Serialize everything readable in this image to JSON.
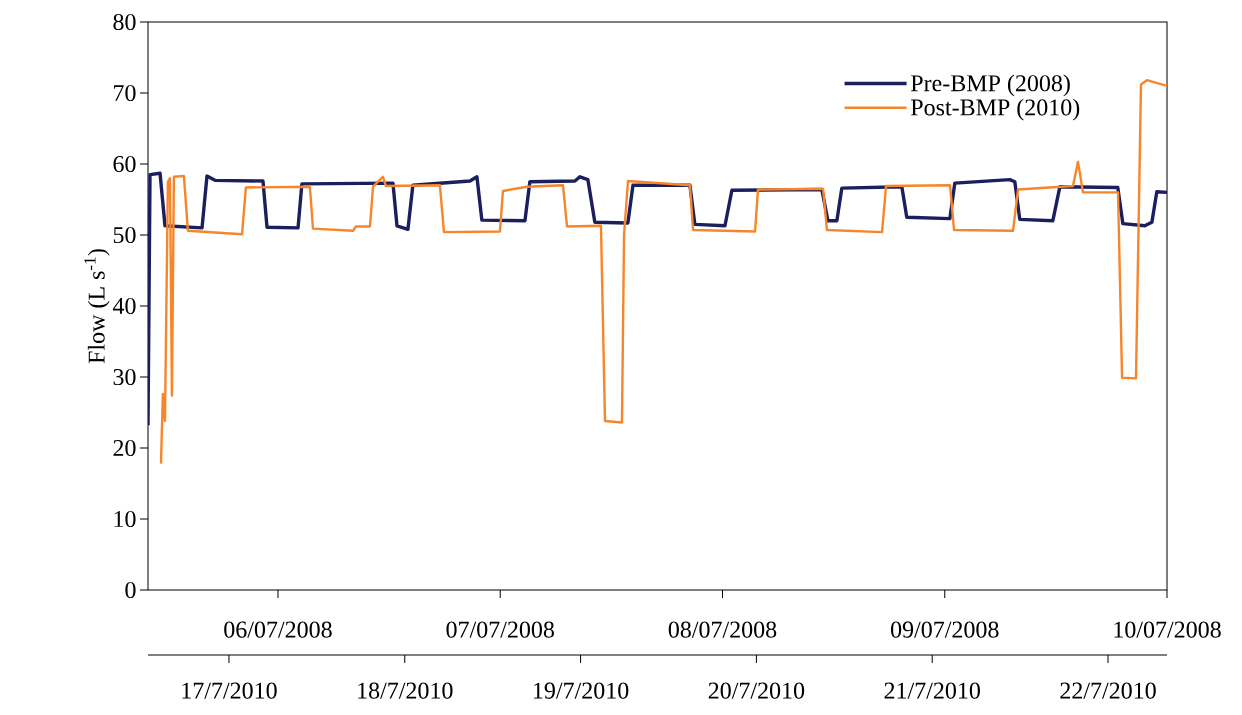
{
  "chart_data": {
    "type": "line",
    "ylabel": "Flow (L s$^{-1}$)",
    "ylim": [
      0,
      80
    ],
    "yticks": [
      0,
      10,
      20,
      30,
      40,
      50,
      60,
      70,
      80
    ],
    "xlim": [
      "2008-07-05T09:58",
      "2008-07-10T00:00"
    ],
    "xticks": [
      {
        "value": "2008-07-06",
        "label": "06/07/2008"
      },
      {
        "value": "2008-07-07",
        "label": "07/07/2008"
      },
      {
        "value": "2008-07-08",
        "label": "08/07/2008"
      },
      {
        "value": "2008-07-09",
        "label": "09/07/2008"
      },
      {
        "value": "2008-07-10",
        "label": "10/07/2008"
      }
    ],
    "x2lim": [
      "2010-07-16T12:57",
      "2010-07-22T08:03"
    ],
    "x2ticks": [
      {
        "value": "2010-07-17",
        "label": "17/7/2010"
      },
      {
        "value": "2010-07-18",
        "label": "18/7/2010"
      },
      {
        "value": "2010-07-19",
        "label": "19/7/2010"
      },
      {
        "value": "2010-07-20",
        "label": "20/7/2010"
      },
      {
        "value": "2010-07-21",
        "label": "21/7/2010"
      },
      {
        "value": "2010-07-22",
        "label": "22/7/2010"
      }
    ],
    "legend": "top right",
    "series": [
      {
        "name": "Pre-BMP (2008)",
        "color": "#1b1f5e",
        "x": [
          "2008-07-05T09:58",
          "2008-07-05T10:11",
          "2008-07-05T11:16",
          "2008-07-05T11:48",
          "2008-07-05T15:48",
          "2008-07-05T16:20",
          "2008-07-05T17:12",
          "2008-07-05T22:23",
          "2008-07-05T22:49",
          "2008-07-06T02:10",
          "2008-07-06T02:35",
          "2008-07-06T12:25",
          "2008-07-06T12:51",
          "2008-07-06T14:02",
          "2008-07-06T14:34",
          "2008-07-06T20:44",
          "2008-07-06T21:29",
          "2008-07-06T22:01",
          "2008-07-07T02:40",
          "2008-07-07T03:12",
          "2008-07-07T08:04",
          "2008-07-07T08:36",
          "2008-07-07T09:28",
          "2008-07-07T10:13",
          "2008-07-07T13:47",
          "2008-07-07T14:20",
          "2008-07-07T20:29",
          "2008-07-07T21:01",
          "2008-07-08T00:16",
          "2008-07-08T01:01",
          "2008-07-08T10:44",
          "2008-07-08T11:23",
          "2008-07-08T12:21",
          "2008-07-08T12:53",
          "2008-07-08T19:22",
          "2008-07-08T19:54",
          "2008-07-09T00:33",
          "2008-07-09T01:05",
          "2008-07-09T07:02",
          "2008-07-09T07:34",
          "2008-07-09T08:06",
          "2008-07-09T11:40",
          "2008-07-09T12:26",
          "2008-07-09T18:41",
          "2008-07-09T19:14",
          "2008-07-09T21:36",
          "2008-07-09T22:22",
          "2008-07-09T22:54",
          "2008-07-10T00:00"
        ],
        "values": [
          23.2,
          58.5,
          58.7,
          51.3,
          51.0,
          58.3,
          57.7,
          57.6,
          51.1,
          51.0,
          57.2,
          57.3,
          51.3,
          50.8,
          57.0,
          57.6,
          58.2,
          52.1,
          52.0,
          57.5,
          57.6,
          58.2,
          57.8,
          51.8,
          51.7,
          57.0,
          57.0,
          51.5,
          51.3,
          56.3,
          56.4,
          52.0,
          52.0,
          56.6,
          56.8,
          52.5,
          52.3,
          57.3,
          57.8,
          57.5,
          52.2,
          52.0,
          56.8,
          56.7,
          51.6,
          51.3,
          51.8,
          56.1,
          56.0
        ]
      },
      {
        "name": "Post-BMP (2010)",
        "color": "#f7862a",
        "axis": "x2",
        "x": [
          "2010-07-16T14:43",
          "2010-07-16T14:59",
          "2010-07-16T15:16",
          "2010-07-16T15:40",
          "2010-07-16T15:57",
          "2010-07-16T16:13",
          "2010-07-16T16:29",
          "2010-07-16T17:51",
          "2010-07-16T18:24",
          "2010-07-17T01:47",
          "2010-07-17T02:19",
          "2010-07-17T11:03",
          "2010-07-17T11:28",
          "2010-07-17T16:56",
          "2010-07-17T17:20",
          "2010-07-17T19:15",
          "2010-07-17T19:40",
          "2010-07-17T21:01",
          "2010-07-17T21:26",
          "2010-07-18T04:48",
          "2010-07-18T05:21",
          "2010-07-18T13:00",
          "2010-07-18T13:24",
          "2010-07-18T16:41",
          "2010-07-18T21:36",
          "2010-07-18T22:09",
          "2010-07-19T02:47",
          "2010-07-19T03:20",
          "2010-07-19T05:39",
          "2010-07-19T05:56",
          "2010-07-19T06:28",
          "2010-07-19T14:56",
          "2010-07-19T15:21",
          "2010-07-19T23:49",
          "2010-07-20T00:13",
          "2010-07-20T09:06",
          "2010-07-20T09:38",
          "2010-07-20T17:09",
          "2010-07-20T17:42",
          "2010-07-21T02:26",
          "2010-07-21T02:59",
          "2010-07-21T11:02",
          "2010-07-21T11:43",
          "2010-07-21T19:13",
          "2010-07-21T19:54",
          "2010-07-21T20:35",
          "2010-07-22T01:22",
          "2010-07-22T01:55",
          "2010-07-22T03:49",
          "2010-07-22T04:30",
          "2010-07-22T05:19",
          "2010-07-22T08:03"
        ],
        "values": [
          17.8,
          27.6,
          23.8,
          57.5,
          58.0,
          27.4,
          58.2,
          58.3,
          50.6,
          50.1,
          56.7,
          56.8,
          50.9,
          50.6,
          51.2,
          51.2,
          56.8,
          58.2,
          56.9,
          57.0,
          50.4,
          50.5,
          56.2,
          56.8,
          57.0,
          51.2,
          51.3,
          23.8,
          23.6,
          50.0,
          57.6,
          57.0,
          50.7,
          50.5,
          56.4,
          56.5,
          50.7,
          50.4,
          56.9,
          57.0,
          50.7,
          50.6,
          56.4,
          56.9,
          60.3,
          56.0,
          56.0,
          29.9,
          29.8,
          71.2,
          71.8,
          71.0
        ]
      }
    ]
  }
}
